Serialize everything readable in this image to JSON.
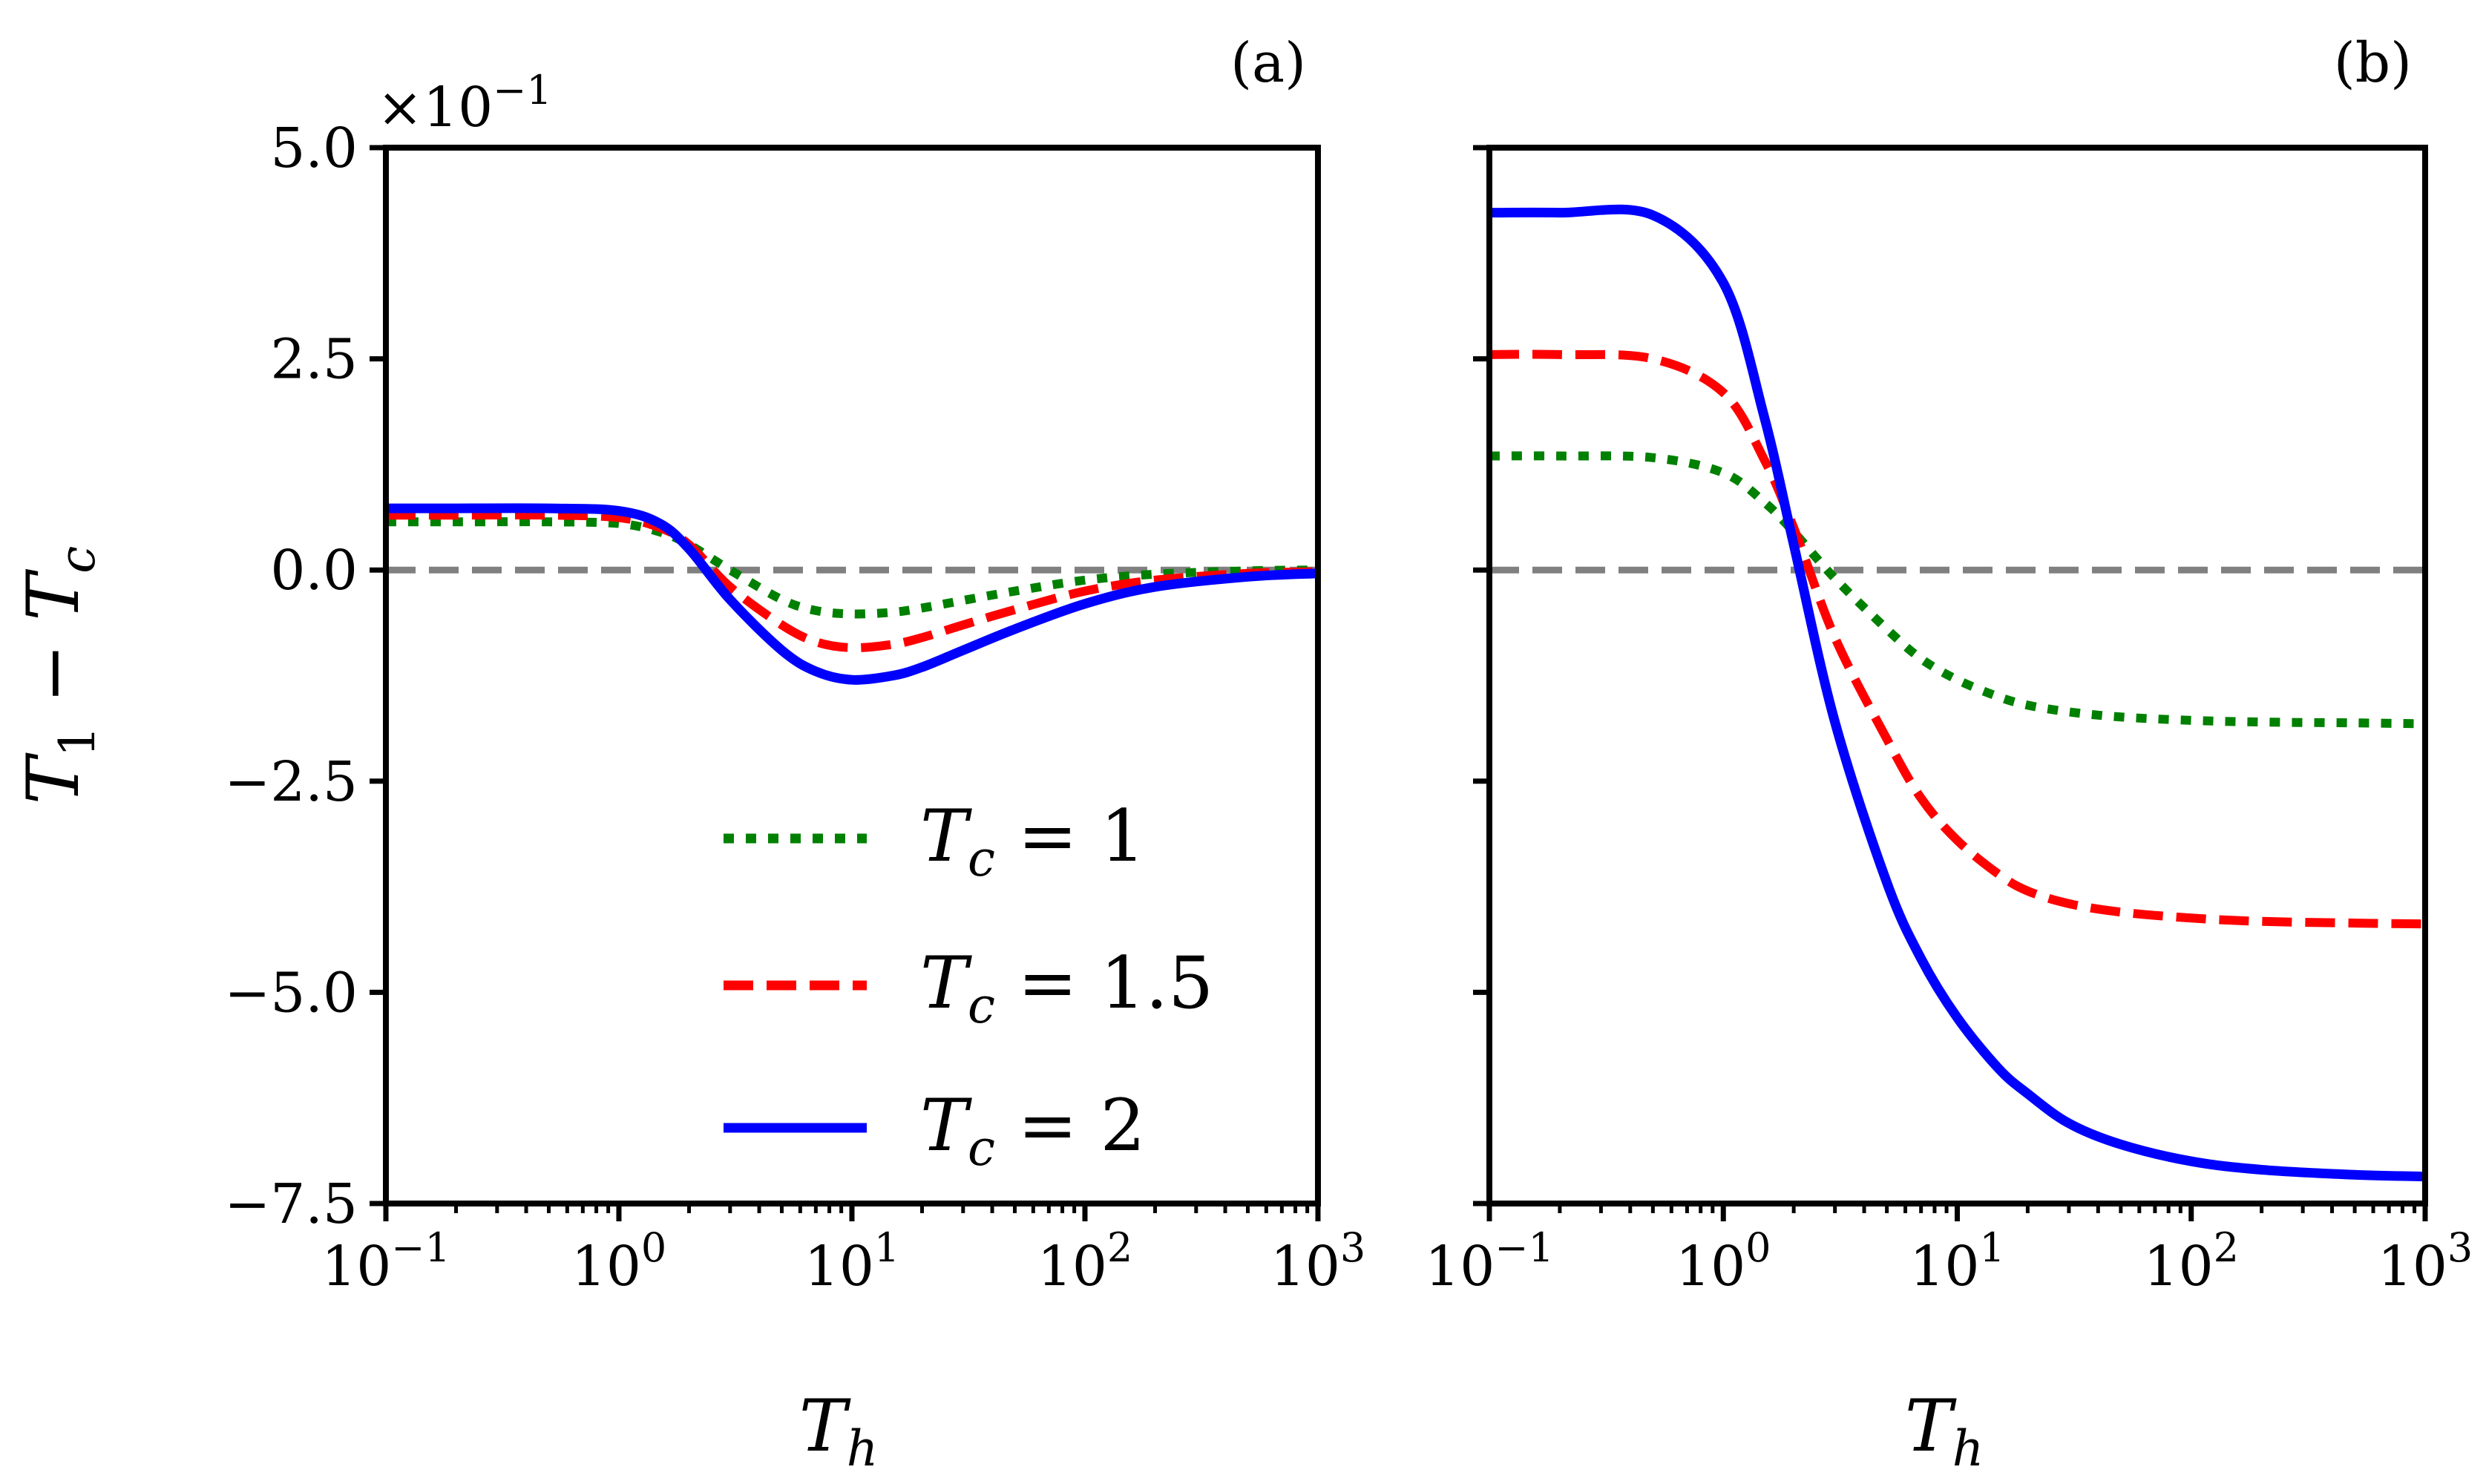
{
  "chart_data": [
    {
      "type": "line",
      "panel_label": "(a)",
      "multiplier_label": "×10",
      "multiplier_exponent": "−1",
      "xlabel": "T",
      "xlabel_sub": "h",
      "ylabel": "T",
      "ylabel_sub1": "1",
      "ylabel_mid": " − T",
      "ylabel_sub2": "c",
      "xscale": "log",
      "xlim": [
        0.1,
        1000
      ],
      "ylim": [
        -7.5,
        5.0
      ],
      "x_ticks": [
        {
          "base": "10",
          "exp": "−1"
        },
        {
          "base": "10",
          "exp": "0"
        },
        {
          "base": "10",
          "exp": "1"
        },
        {
          "base": "10",
          "exp": "2"
        },
        {
          "base": "10",
          "exp": "3"
        }
      ],
      "y_ticks": [
        "5.0",
        "2.5",
        "0.0",
        "−2.5",
        "−5.0",
        "−7.5"
      ],
      "y_tick_values": [
        5.0,
        2.5,
        0.0,
        -2.5,
        -5.0,
        -7.5
      ],
      "reference_line": {
        "y": 0,
        "color": "#808080",
        "style": "dashed"
      },
      "x": [
        0.1,
        0.2,
        0.5,
        1,
        1.5,
        2,
        3,
        5,
        7,
        10,
        15,
        20,
        30,
        50,
        100,
        200,
        500,
        1000
      ],
      "series": [
        {
          "name": "T_c = 1",
          "legend_main": "T",
          "legend_sub": "c",
          "legend_val": " = 1",
          "color": "#008000",
          "style": "dotted",
          "values": [
            0.57,
            0.57,
            0.57,
            0.55,
            0.45,
            0.3,
            0.0,
            -0.35,
            -0.48,
            -0.52,
            -0.5,
            -0.45,
            -0.36,
            -0.25,
            -0.12,
            -0.05,
            -0.01,
            0.0
          ]
        },
        {
          "name": "T_c = 1.5",
          "legend_main": "T",
          "legend_sub": "c",
          "legend_val": " = 1.5",
          "color": "#ff0000",
          "style": "dashed",
          "values": [
            0.65,
            0.65,
            0.65,
            0.62,
            0.5,
            0.3,
            -0.2,
            -0.65,
            -0.85,
            -0.92,
            -0.88,
            -0.8,
            -0.65,
            -0.47,
            -0.25,
            -0.12,
            -0.04,
            -0.02
          ]
        },
        {
          "name": "T_c = 2",
          "legend_main": "T",
          "legend_sub": "c",
          "legend_val": " = 2",
          "color": "#0000ff",
          "style": "solid",
          "values": [
            0.73,
            0.73,
            0.73,
            0.7,
            0.55,
            0.25,
            -0.35,
            -0.95,
            -1.2,
            -1.3,
            -1.25,
            -1.15,
            -0.95,
            -0.7,
            -0.4,
            -0.2,
            -0.08,
            -0.04
          ]
        }
      ],
      "legend_position": "lower-right"
    },
    {
      "type": "line",
      "panel_label": "(b)",
      "xlabel": "T",
      "xlabel_sub": "h",
      "xscale": "log",
      "xlim": [
        0.1,
        1000
      ],
      "ylim": [
        -7.5,
        5.0
      ],
      "y_tick_values": [
        5.0,
        2.5,
        0.0,
        -2.5,
        -5.0,
        -7.5
      ],
      "x_ticks": [
        {
          "base": "10",
          "exp": "−1"
        },
        {
          "base": "10",
          "exp": "0"
        },
        {
          "base": "10",
          "exp": "1"
        },
        {
          "base": "10",
          "exp": "2"
        },
        {
          "base": "10",
          "exp": "3"
        }
      ],
      "reference_line": {
        "y": 0,
        "color": "#808080",
        "style": "dashed"
      },
      "x": [
        0.1,
        0.2,
        0.5,
        1,
        1.5,
        2,
        3,
        5,
        7,
        10,
        15,
        20,
        30,
        50,
        100,
        200,
        500,
        1000
      ],
      "series": [
        {
          "color": "#008000",
          "style": "dotted",
          "values": [
            1.35,
            1.35,
            1.33,
            1.15,
            0.8,
            0.45,
            -0.1,
            -0.7,
            -1.05,
            -1.3,
            -1.5,
            -1.6,
            -1.68,
            -1.74,
            -1.78,
            -1.8,
            -1.81,
            -1.82
          ]
        },
        {
          "color": "#ff0000",
          "style": "dashed",
          "values": [
            2.55,
            2.55,
            2.5,
            2.1,
            1.3,
            0.5,
            -0.8,
            -2.0,
            -2.7,
            -3.2,
            -3.6,
            -3.8,
            -3.95,
            -4.05,
            -4.12,
            -4.16,
            -4.18,
            -4.19
          ]
        },
        {
          "color": "#0000ff",
          "style": "solid",
          "values": [
            4.23,
            4.23,
            4.2,
            3.4,
            1.8,
            0.3,
            -1.8,
            -3.7,
            -4.6,
            -5.3,
            -5.9,
            -6.2,
            -6.55,
            -6.8,
            -7.0,
            -7.1,
            -7.16,
            -7.18
          ]
        }
      ]
    }
  ]
}
